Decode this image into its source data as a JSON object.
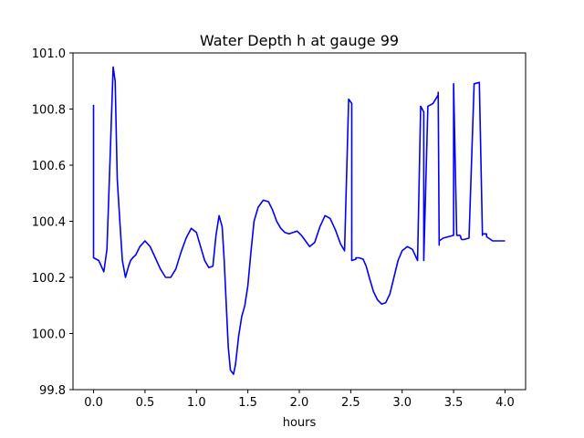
{
  "chart_data": {
    "type": "line",
    "title": "Water Depth h at gauge 99",
    "xlabel": "hours",
    "ylabel": "",
    "xlim": [
      -0.2,
      4.2
    ],
    "ylim": [
      99.8,
      101.0
    ],
    "xticks": [
      "0.0",
      "0.5",
      "1.0",
      "1.5",
      "2.0",
      "2.5",
      "3.0",
      "3.5",
      "4.0"
    ],
    "yticks": [
      "99.8",
      "100.0",
      "100.2",
      "100.4",
      "100.6",
      "100.8",
      "101.0"
    ],
    "grid": false,
    "legend": "none",
    "series": [
      {
        "color": "#0000ff",
        "x": [
          0.0,
          0.0,
          0.05,
          0.1,
          0.13,
          0.16,
          0.19,
          0.21,
          0.23,
          0.26,
          0.28,
          0.31,
          0.34,
          0.36,
          0.38,
          0.41,
          0.45,
          0.5,
          0.55,
          0.6,
          0.65,
          0.7,
          0.75,
          0.8,
          0.85,
          0.9,
          0.95,
          1.0,
          1.04,
          1.08,
          1.12,
          1.16,
          1.19,
          1.22,
          1.25,
          1.27,
          1.29,
          1.31,
          1.33,
          1.36,
          1.38,
          1.41,
          1.44,
          1.47,
          1.5,
          1.53,
          1.56,
          1.6,
          1.65,
          1.7,
          1.74,
          1.78,
          1.82,
          1.86,
          1.9,
          1.94,
          1.98,
          2.02,
          2.06,
          2.1,
          2.15,
          2.2,
          2.25,
          2.3,
          2.35,
          2.4,
          2.44,
          2.48,
          2.51,
          2.51,
          2.55,
          2.55,
          2.58,
          2.62,
          2.65,
          2.68,
          2.72,
          2.76,
          2.8,
          2.84,
          2.88,
          2.92,
          2.96,
          3.0,
          3.05,
          3.1,
          3.15,
          3.18,
          3.21,
          3.21,
          3.25,
          3.3,
          3.35,
          3.35,
          3.36,
          3.36,
          3.4,
          3.45,
          3.5,
          3.5,
          3.53,
          3.56,
          3.57,
          3.57,
          3.58,
          3.6,
          3.65,
          3.7,
          3.75,
          3.78,
          3.78,
          3.82,
          3.82,
          3.88,
          3.95,
          4.0
        ],
        "values": [
          100.815,
          100.27,
          100.26,
          100.22,
          100.3,
          100.62,
          100.95,
          100.9,
          100.55,
          100.37,
          100.26,
          100.2,
          100.24,
          100.26,
          100.27,
          100.28,
          100.31,
          100.33,
          100.31,
          100.27,
          100.23,
          100.2,
          100.2,
          100.23,
          100.29,
          100.34,
          100.375,
          100.36,
          100.31,
          100.26,
          100.235,
          100.24,
          100.35,
          100.42,
          100.38,
          100.26,
          100.1,
          99.95,
          99.87,
          99.855,
          99.89,
          99.99,
          100.06,
          100.1,
          100.17,
          100.29,
          100.4,
          100.45,
          100.475,
          100.47,
          100.44,
          100.4,
          100.375,
          100.36,
          100.355,
          100.36,
          100.365,
          100.35,
          100.33,
          100.31,
          100.325,
          100.38,
          100.42,
          100.41,
          100.37,
          100.32,
          100.295,
          100.835,
          100.82,
          100.26,
          100.265,
          100.27,
          100.27,
          100.265,
          100.24,
          100.2,
          100.15,
          100.12,
          100.105,
          100.11,
          100.14,
          100.2,
          100.26,
          100.295,
          100.31,
          100.3,
          100.26,
          100.81,
          100.79,
          100.26,
          100.81,
          100.82,
          100.85,
          100.86,
          100.315,
          100.33,
          100.34,
          100.345,
          100.35,
          100.89,
          100.35,
          100.35,
          100.345,
          100.34,
          100.335,
          100.335,
          100.34,
          100.89,
          100.895,
          100.35,
          100.355,
          100.355,
          100.345,
          100.33,
          100.33,
          100.33
        ]
      }
    ]
  }
}
